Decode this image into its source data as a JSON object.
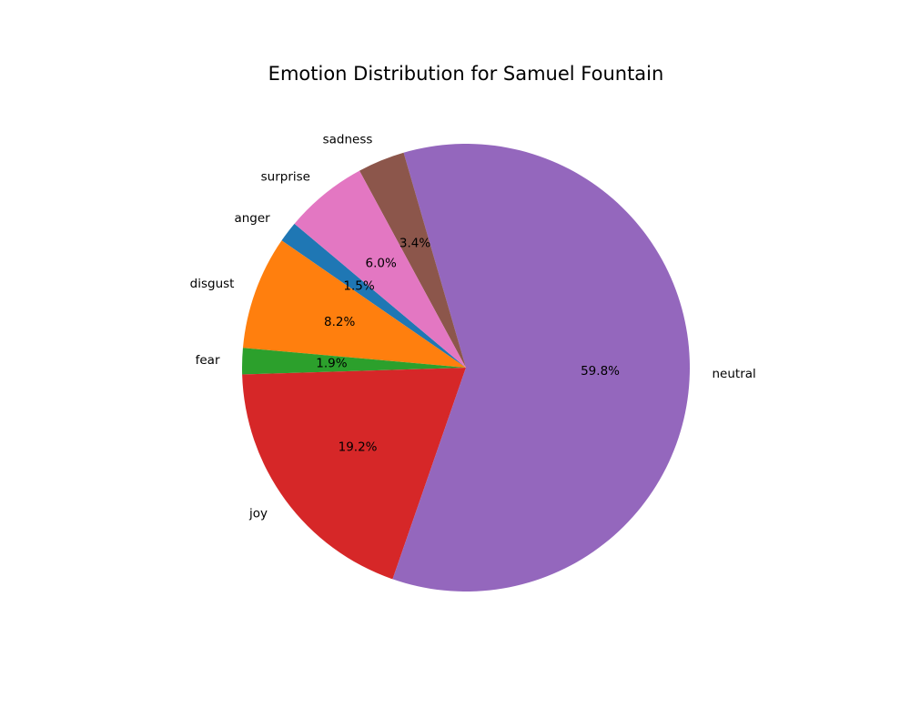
{
  "chart_data": {
    "type": "pie",
    "title": "Emotion Distribution for Samuel Fountain",
    "labels": [
      "anger",
      "disgust",
      "fear",
      "joy",
      "neutral",
      "sadness",
      "surprise"
    ],
    "values": [
      1.5,
      8.2,
      1.9,
      19.2,
      59.8,
      3.4,
      6.0
    ],
    "value_labels": [
      "1.5%",
      "8.2%",
      "1.9%",
      "19.2%",
      "59.8%",
      "3.4%",
      "6.0%"
    ],
    "colors": [
      "#1f77b4",
      "#ff7f0e",
      "#2ca02c",
      "#d62728",
      "#9467bd",
      "#8c564b",
      "#e377c2"
    ],
    "start_angle_deg": 140,
    "direction": "counterclockwise"
  }
}
